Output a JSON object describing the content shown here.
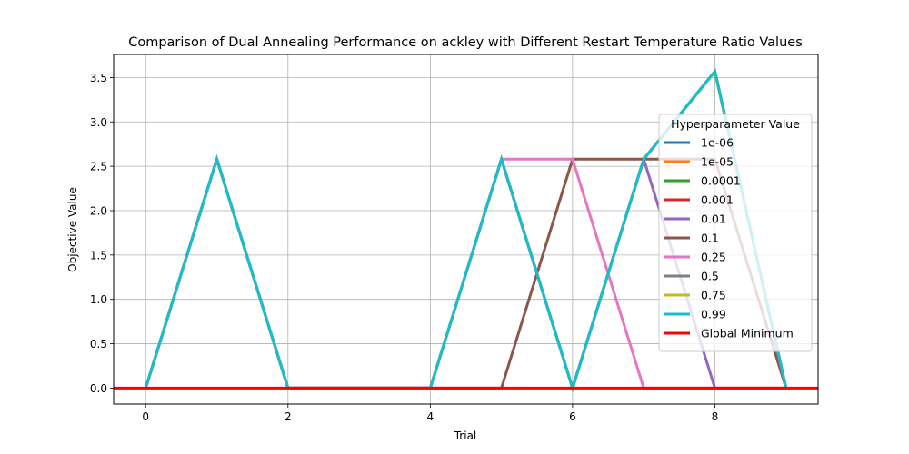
{
  "chart_data": {
    "type": "line",
    "title": "Comparison of Dual Annealing Performance on ackley with Different Restart Temperature Ratio Values",
    "xlabel": "Trial",
    "ylabel": "Objective Value",
    "xlim": [
      -0.45,
      9.45
    ],
    "ylim": [
      -0.18,
      3.76
    ],
    "xticks": [
      0,
      2,
      4,
      6,
      8
    ],
    "xtick_labels": [
      "0",
      "2",
      "4",
      "6",
      "8"
    ],
    "yticks": [
      0.0,
      0.5,
      1.0,
      1.5,
      2.0,
      2.5,
      3.0,
      3.5
    ],
    "ytick_labels": [
      "0.0",
      "0.5",
      "1.0",
      "1.5",
      "2.0",
      "2.5",
      "3.0",
      "3.5"
    ],
    "grid": true,
    "legend": {
      "title": "Hyperparameter Value",
      "placement": "right"
    },
    "x": [
      0,
      1,
      2,
      3,
      4,
      5,
      6,
      7,
      8,
      9
    ],
    "series": [
      {
        "name": "1e-06",
        "color": "#1f77b4",
        "values": [
          0,
          2.58,
          0,
          0,
          0,
          2.58,
          0,
          2.58,
          3.57,
          0
        ]
      },
      {
        "name": "1e-05",
        "color": "#ff7f0e",
        "values": [
          0,
          2.58,
          0,
          0,
          0,
          2.58,
          0,
          2.58,
          3.57,
          0
        ]
      },
      {
        "name": "0.0001",
        "color": "#2ca02c",
        "values": [
          0,
          2.58,
          0,
          0,
          0,
          2.58,
          0,
          2.58,
          3.57,
          0
        ]
      },
      {
        "name": "0.001",
        "color": "#d62728",
        "values": [
          0,
          2.58,
          0,
          0,
          0,
          2.58,
          0,
          2.58,
          3.57,
          0
        ]
      },
      {
        "name": "0.01",
        "color": "#9467bd",
        "values": [
          0,
          2.58,
          0,
          0,
          0,
          2.58,
          0,
          2.58,
          0,
          0
        ]
      },
      {
        "name": "0.1",
        "color": "#8c564b",
        "values": [
          0,
          2.58,
          0,
          0,
          0,
          0,
          2.58,
          2.58,
          2.58,
          0
        ]
      },
      {
        "name": "0.25",
        "color": "#e377c2",
        "values": [
          0,
          2.58,
          0,
          0,
          0,
          2.58,
          2.58,
          0,
          0,
          0
        ]
      },
      {
        "name": "0.5",
        "color": "#7f7f7f",
        "values": [
          0,
          2.58,
          0,
          0,
          0,
          2.58,
          0,
          2.58,
          3.57,
          0
        ]
      },
      {
        "name": "0.75",
        "color": "#bcbd22",
        "values": [
          0,
          2.58,
          0,
          0,
          0,
          2.58,
          0,
          2.58,
          3.57,
          0
        ]
      },
      {
        "name": "0.99",
        "color": "#17becf",
        "values": [
          0,
          2.58,
          0,
          0,
          0,
          2.58,
          0,
          2.58,
          3.57,
          0
        ]
      }
    ],
    "hline": {
      "name": "Global Minimum",
      "color": "#ff0000",
      "y": 0
    }
  }
}
